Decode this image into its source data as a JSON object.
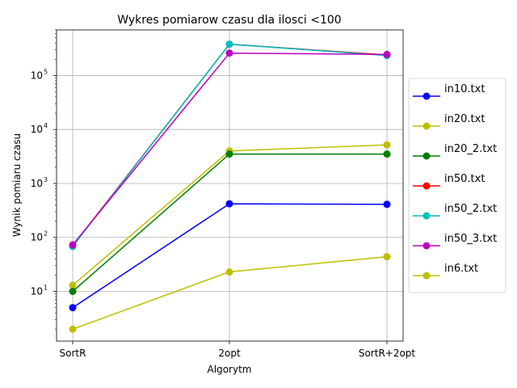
{
  "chart_data": {
    "type": "line",
    "title": "Wykres pomiarow czasu dla ilosci <100",
    "xlabel": "Algorytm",
    "ylabel": "Wynik pomiaru czasu",
    "categories": [
      "SortR",
      "2opt",
      "SortR+2opt"
    ],
    "yscale": "log",
    "ylim": [
      1.2,
      700000
    ],
    "y_ticks": [
      {
        "value": 10,
        "label": "10",
        "exp": "1"
      },
      {
        "value": 100,
        "label": "10",
        "exp": "2"
      },
      {
        "value": 1000,
        "label": "10",
        "exp": "3"
      },
      {
        "value": 10000,
        "label": "10",
        "exp": "4"
      },
      {
        "value": 100000,
        "label": "10",
        "exp": "5"
      }
    ],
    "grid": true,
    "legend_position": "right, outside plot",
    "series": [
      {
        "name": "in10.txt",
        "color": "#0000ff",
        "values": [
          5,
          420,
          410
        ]
      },
      {
        "name": "in20.txt",
        "color": "#bfbf00",
        "values": [
          13,
          4000,
          5200
        ]
      },
      {
        "name": "in20_2.txt",
        "color": "#008000",
        "values": [
          10,
          3500,
          3500
        ]
      },
      {
        "name": "in50.txt",
        "color": "#ff0000",
        "values": [
          70,
          380000,
          240000
        ]
      },
      {
        "name": "in50_2.txt",
        "color": "#00bfbf",
        "values": [
          68,
          380000,
          235000
        ]
      },
      {
        "name": "in50_3.txt",
        "color": "#bf00bf",
        "values": [
          73,
          260000,
          245000
        ]
      },
      {
        "name": "in6.txt",
        "color": "#bfbf00",
        "values": [
          2,
          23,
          44
        ]
      }
    ]
  }
}
